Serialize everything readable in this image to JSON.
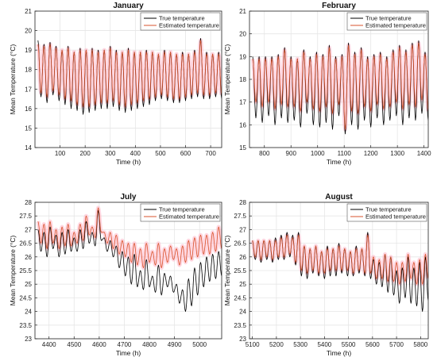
{
  "colors": {
    "true_series": "#000000",
    "estimated_series": "#d9532c",
    "band": "#ffb6c8",
    "grid": "#e6e6e6"
  },
  "chart_data": [
    {
      "type": "line",
      "title": "January",
      "xlabel": "Time (h)",
      "ylabel": "Mean Temperature (°C)",
      "xlim": [
        0,
        744
      ],
      "ylim": [
        14,
        21
      ],
      "xticks": [
        100,
        200,
        300,
        400,
        500,
        600,
        700
      ],
      "yticks": [
        14,
        15,
        16,
        17,
        18,
        19,
        20,
        21
      ],
      "grid": true,
      "legend_position": "top-right",
      "series": [
        {
          "name": "True temperature",
          "color": "#000000",
          "x": [
            12,
            36,
            60,
            84,
            108,
            132,
            156,
            180,
            204,
            228,
            252,
            276,
            300,
            324,
            348,
            372,
            396,
            420,
            444,
            468,
            492,
            516,
            540,
            564,
            588,
            612,
            636,
            660,
            684,
            708,
            732
          ],
          "y_max": [
            19.5,
            19.3,
            19.4,
            19.2,
            19.0,
            19.2,
            18.9,
            19.1,
            19.0,
            19.1,
            19.0,
            19.0,
            19.2,
            19.0,
            18.9,
            19.1,
            18.9,
            18.9,
            19.0,
            18.9,
            18.8,
            19.0,
            18.9,
            18.8,
            18.9,
            18.8,
            19.0,
            19.6,
            18.9,
            18.8,
            18.9
          ],
          "y_min": [
            16.6,
            16.3,
            16.7,
            16.4,
            16.2,
            16.0,
            15.9,
            15.7,
            15.8,
            15.9,
            16.0,
            16.0,
            16.1,
            15.9,
            15.8,
            15.9,
            16.0,
            16.1,
            16.2,
            16.4,
            16.5,
            16.4,
            16.3,
            16.3,
            16.4,
            16.5,
            16.6,
            16.5,
            16.5,
            16.6,
            16.5
          ]
        },
        {
          "name": "Estimated temperature",
          "color": "#d9532c",
          "x": [
            12,
            36,
            60,
            84,
            108,
            132,
            156,
            180,
            204,
            228,
            252,
            276,
            300,
            324,
            348,
            372,
            396,
            420,
            444,
            468,
            492,
            516,
            540,
            564,
            588,
            612,
            636,
            660,
            684,
            708,
            732
          ],
          "y_max": [
            19.3,
            19.2,
            19.3,
            19.1,
            19.0,
            19.1,
            18.9,
            19.0,
            19.0,
            19.0,
            18.9,
            19.0,
            19.1,
            18.9,
            18.9,
            19.0,
            18.9,
            18.9,
            18.9,
            18.9,
            18.8,
            18.9,
            18.9,
            18.8,
            18.8,
            18.8,
            18.9,
            19.5,
            18.8,
            18.8,
            18.8
          ],
          "y_min": [
            16.8,
            16.6,
            16.9,
            16.7,
            16.5,
            16.4,
            16.2,
            16.1,
            16.1,
            16.2,
            16.3,
            16.3,
            16.4,
            16.2,
            16.1,
            16.2,
            16.3,
            16.4,
            16.5,
            16.6,
            16.7,
            16.6,
            16.5,
            16.5,
            16.6,
            16.7,
            16.8,
            16.7,
            16.7,
            16.8,
            16.7
          ]
        }
      ]
    },
    {
      "type": "line",
      "title": "February",
      "xlabel": "Time (h)",
      "ylabel": "Mean Temperature (°C)",
      "xlim": [
        744,
        1416
      ],
      "ylim": [
        15,
        21
      ],
      "xticks": [
        800,
        900,
        1000,
        1100,
        1200,
        1300,
        1400
      ],
      "yticks": [
        15,
        16,
        17,
        18,
        19,
        20,
        21
      ],
      "grid": true,
      "legend_position": "top-right",
      "series": [
        {
          "name": "True temperature",
          "color": "#000000",
          "x": [
            756,
            780,
            804,
            828,
            852,
            876,
            900,
            924,
            948,
            972,
            996,
            1020,
            1044,
            1068,
            1092,
            1116,
            1140,
            1164,
            1188,
            1212,
            1236,
            1260,
            1284,
            1308,
            1332,
            1356,
            1380,
            1404
          ],
          "y_max": [
            19.0,
            19.0,
            19.0,
            19.0,
            19.1,
            19.4,
            19.0,
            18.9,
            19.3,
            19.0,
            19.2,
            19.1,
            19.5,
            19.0,
            19.1,
            19.6,
            19.2,
            19.4,
            19.0,
            19.1,
            19.2,
            19.0,
            19.3,
            19.5,
            19.3,
            19.6,
            19.7,
            19.2
          ],
          "y_min": [
            16.3,
            16.1,
            16.4,
            16.0,
            16.3,
            16.1,
            16.2,
            15.9,
            16.5,
            16.0,
            15.9,
            16.1,
            15.8,
            16.4,
            15.6,
            16.0,
            15.8,
            16.2,
            15.9,
            16.3,
            16.0,
            16.2,
            16.4,
            16.0,
            16.3,
            16.2,
            16.5,
            16.2
          ]
        },
        {
          "name": "Estimated temperature",
          "color": "#d9532c",
          "x": [
            756,
            780,
            804,
            828,
            852,
            876,
            900,
            924,
            948,
            972,
            996,
            1020,
            1044,
            1068,
            1092,
            1116,
            1140,
            1164,
            1188,
            1212,
            1236,
            1260,
            1284,
            1308,
            1332,
            1356,
            1380,
            1404
          ],
          "y_max": [
            18.9,
            18.9,
            18.9,
            18.9,
            19.0,
            19.3,
            18.9,
            18.9,
            19.2,
            18.9,
            19.1,
            19.0,
            19.4,
            18.9,
            19.0,
            19.5,
            19.1,
            19.3,
            18.9,
            19.0,
            19.1,
            18.9,
            19.2,
            19.4,
            19.2,
            19.5,
            19.6,
            19.1
          ],
          "y_min": [
            17.0,
            16.8,
            17.0,
            16.7,
            16.9,
            16.8,
            16.8,
            16.6,
            17.0,
            16.7,
            16.6,
            16.8,
            16.5,
            16.9,
            15.8,
            16.6,
            16.5,
            16.8,
            16.6,
            16.9,
            16.7,
            16.8,
            17.0,
            16.7,
            16.9,
            16.8,
            17.1,
            16.6
          ]
        }
      ]
    },
    {
      "type": "line",
      "title": "July",
      "xlabel": "Time (h)",
      "ylabel": "Mean Temperature (°C)",
      "xlim": [
        4344,
        5088
      ],
      "ylim": [
        23,
        28
      ],
      "xticks": [
        4400,
        4500,
        4600,
        4700,
        4800,
        4900,
        5000
      ],
      "yticks": [
        23,
        23.5,
        24,
        24.5,
        25,
        25.5,
        26,
        26.5,
        27,
        27.5,
        28
      ],
      "grid": true,
      "legend_position": "top-right",
      "series": [
        {
          "name": "True temperature",
          "color": "#000000",
          "x": [
            4356,
            4380,
            4404,
            4428,
            4452,
            4476,
            4500,
            4524,
            4548,
            4572,
            4596,
            4620,
            4644,
            4668,
            4692,
            4716,
            4740,
            4764,
            4788,
            4812,
            4836,
            4860,
            4884,
            4908,
            4932,
            4956,
            4980,
            5004,
            5028,
            5052,
            5076
          ],
          "y_max": [
            27.0,
            26.9,
            27.1,
            26.8,
            26.9,
            27.0,
            26.7,
            27.0,
            27.3,
            26.9,
            27.7,
            26.7,
            26.6,
            26.4,
            26.2,
            26.0,
            26.1,
            25.5,
            25.9,
            25.3,
            25.7,
            25.4,
            25.3,
            25.0,
            24.8,
            25.2,
            25.6,
            25.8,
            26.0,
            26.1,
            26.2
          ],
          "y_min": [
            26.2,
            26.0,
            26.3,
            26.0,
            26.1,
            26.2,
            26.2,
            26.3,
            26.5,
            26.4,
            26.6,
            26.2,
            26.0,
            25.6,
            25.3,
            25.0,
            24.9,
            24.8,
            24.9,
            24.7,
            24.6,
            24.9,
            24.7,
            24.3,
            24.0,
            24.2,
            24.6,
            24.9,
            25.1,
            25.2,
            25.3
          ]
        },
        {
          "name": "Estimated temperature",
          "color": "#d9532c",
          "x": [
            4356,
            4380,
            4404,
            4428,
            4452,
            4476,
            4500,
            4524,
            4548,
            4572,
            4596,
            4620,
            4644,
            4668,
            4692,
            4716,
            4740,
            4764,
            4788,
            4812,
            4836,
            4860,
            4884,
            4908,
            4932,
            4956,
            4980,
            5004,
            5028,
            5052,
            5076
          ],
          "y_max": [
            27.3,
            27.2,
            27.3,
            27.0,
            27.1,
            27.2,
            26.9,
            27.2,
            27.5,
            27.1,
            27.8,
            26.9,
            26.9,
            26.8,
            26.6,
            26.5,
            26.5,
            26.3,
            26.5,
            26.2,
            26.5,
            26.3,
            26.4,
            26.3,
            26.4,
            26.6,
            26.7,
            26.8,
            26.8,
            26.9,
            27.1
          ],
          "y_min": [
            26.5,
            26.3,
            26.5,
            26.3,
            26.4,
            26.4,
            26.5,
            26.6,
            26.8,
            26.7,
            26.9,
            26.5,
            26.3,
            26.1,
            26.0,
            25.8,
            25.7,
            25.6,
            25.8,
            25.7,
            25.6,
            25.8,
            25.9,
            25.7,
            25.8,
            25.9,
            26.0,
            26.1,
            26.1,
            26.2,
            26.3
          ]
        }
      ]
    },
    {
      "type": "line",
      "title": "August",
      "xlabel": "Time (h)",
      "ylabel": "Mean Temperature (°C)",
      "xlim": [
        5088,
        5832
      ],
      "ylim": [
        23,
        28
      ],
      "xticks": [
        5100,
        5200,
        5300,
        5400,
        5500,
        5600,
        5700,
        5800
      ],
      "yticks": [
        23,
        23.5,
        24,
        24.5,
        25,
        25.5,
        26,
        26.5,
        27,
        27.5,
        28
      ],
      "grid": true,
      "legend_position": "top-right",
      "series": [
        {
          "name": "True temperature",
          "color": "#000000",
          "x": [
            5100,
            5124,
            5148,
            5172,
            5196,
            5220,
            5244,
            5268,
            5292,
            5316,
            5340,
            5364,
            5388,
            5412,
            5436,
            5460,
            5484,
            5508,
            5532,
            5556,
            5580,
            5604,
            5628,
            5652,
            5676,
            5700,
            5724,
            5748,
            5772,
            5796,
            5820
          ],
          "y_max": [
            26.6,
            26.6,
            26.6,
            26.6,
            26.7,
            26.8,
            26.9,
            26.8,
            26.9,
            26.4,
            26.3,
            26.4,
            26.2,
            26.4,
            26.3,
            26.5,
            26.3,
            26.2,
            26.4,
            26.3,
            26.9,
            25.9,
            25.8,
            26.1,
            26.0,
            25.5,
            25.6,
            26.0,
            25.6,
            25.8,
            26.0
          ],
          "y_min": [
            25.9,
            25.8,
            25.9,
            25.8,
            25.9,
            25.9,
            26.0,
            25.7,
            25.3,
            25.2,
            25.4,
            25.3,
            25.2,
            25.3,
            25.3,
            25.4,
            25.3,
            25.3,
            25.4,
            25.3,
            25.2,
            25.0,
            24.9,
            24.7,
            24.6,
            24.3,
            24.5,
            24.3,
            24.2,
            24.0,
            24.4
          ]
        },
        {
          "name": "Estimated temperature",
          "color": "#d9532c",
          "x": [
            5100,
            5124,
            5148,
            5172,
            5196,
            5220,
            5244,
            5268,
            5292,
            5316,
            5340,
            5364,
            5388,
            5412,
            5436,
            5460,
            5484,
            5508,
            5532,
            5556,
            5580,
            5604,
            5628,
            5652,
            5676,
            5700,
            5724,
            5748,
            5772,
            5796,
            5820
          ],
          "y_max": [
            26.6,
            26.6,
            26.6,
            26.6,
            26.6,
            26.7,
            26.8,
            26.7,
            26.8,
            26.4,
            26.3,
            26.4,
            26.2,
            26.3,
            26.3,
            26.4,
            26.3,
            26.2,
            26.3,
            26.3,
            26.8,
            26.0,
            25.9,
            26.1,
            26.0,
            25.8,
            25.8,
            26.1,
            25.8,
            25.9,
            26.1
          ],
          "y_min": [
            26.0,
            25.9,
            26.0,
            25.9,
            26.0,
            26.0,
            26.1,
            25.8,
            25.5,
            25.4,
            25.5,
            25.4,
            25.4,
            25.5,
            25.5,
            25.5,
            25.5,
            25.4,
            25.5,
            25.4,
            25.4,
            25.2,
            25.2,
            25.1,
            25.1,
            25.0,
            25.1,
            25.2,
            25.0,
            25.0,
            25.2
          ]
        }
      ]
    }
  ]
}
